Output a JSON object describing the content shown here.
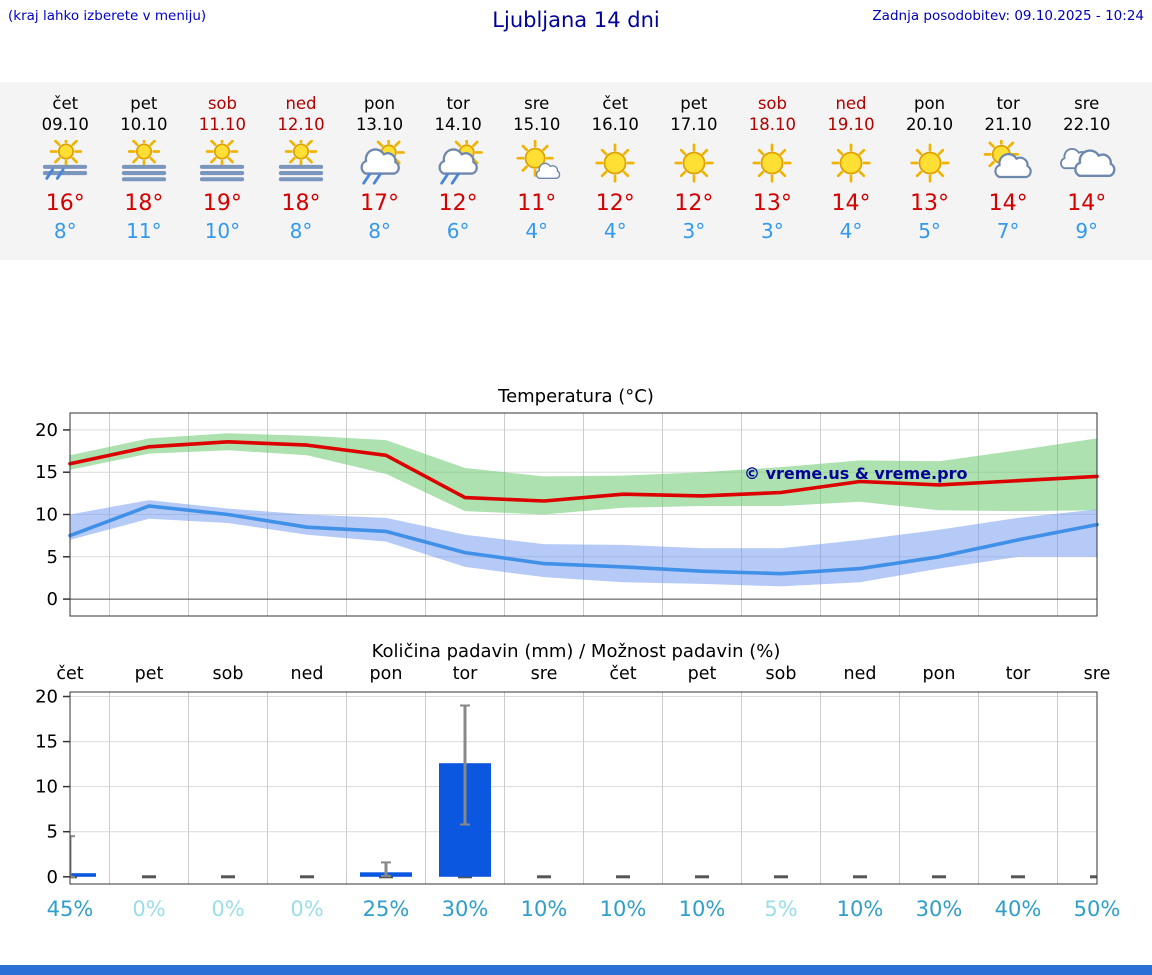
{
  "header": {
    "hint": "(kraj lahko izberete v meniju)",
    "title": "Ljubljana 14 dni",
    "updated": "Zadnja posodobitev: 09.10.2025 - 10:24"
  },
  "forecast": {
    "high_color": "#d40000",
    "low_color": "#3399ee",
    "weekend_color": "#b30000",
    "days": [
      {
        "name": "čet",
        "date": "09.10",
        "weekend": false,
        "icon": "sun-fog-rain",
        "high": "16°",
        "low": "8°"
      },
      {
        "name": "pet",
        "date": "10.10",
        "weekend": false,
        "icon": "sun-fog",
        "high": "18°",
        "low": "11°"
      },
      {
        "name": "sob",
        "date": "11.10",
        "weekend": true,
        "icon": "sun-fog",
        "high": "19°",
        "low": "10°"
      },
      {
        "name": "ned",
        "date": "12.10",
        "weekend": true,
        "icon": "sun-fog",
        "high": "18°",
        "low": "8°"
      },
      {
        "name": "pon",
        "date": "13.10",
        "weekend": false,
        "icon": "sun-cloud-rain",
        "high": "17°",
        "low": "8°"
      },
      {
        "name": "tor",
        "date": "14.10",
        "weekend": false,
        "icon": "sun-cloud-rain",
        "high": "12°",
        "low": "6°"
      },
      {
        "name": "sre",
        "date": "15.10",
        "weekend": false,
        "icon": "sun-small-cloud",
        "high": "11°",
        "low": "4°"
      },
      {
        "name": "čet",
        "date": "16.10",
        "weekend": false,
        "icon": "sun",
        "high": "12°",
        "low": "4°"
      },
      {
        "name": "pet",
        "date": "17.10",
        "weekend": false,
        "icon": "sun",
        "high": "12°",
        "low": "3°"
      },
      {
        "name": "sob",
        "date": "18.10",
        "weekend": true,
        "icon": "sun",
        "high": "13°",
        "low": "3°"
      },
      {
        "name": "ned",
        "date": "19.10",
        "weekend": true,
        "icon": "sun",
        "high": "14°",
        "low": "4°"
      },
      {
        "name": "pon",
        "date": "20.10",
        "weekend": false,
        "icon": "sun",
        "high": "13°",
        "low": "5°"
      },
      {
        "name": "tor",
        "date": "21.10",
        "weekend": false,
        "icon": "sun-cloud",
        "high": "14°",
        "low": "7°"
      },
      {
        "name": "sre",
        "date": "22.10",
        "weekend": false,
        "icon": "cloudy",
        "high": "14°",
        "low": "9°"
      }
    ]
  },
  "chart_data": [
    {
      "type": "line",
      "title": "Temperatura (°C)",
      "watermark": "© vreme.us & vreme.pro",
      "watermark_color": "#000099",
      "ylim": [
        -2,
        22
      ],
      "yticks": [
        0,
        5,
        10,
        15,
        20
      ],
      "grid": true,
      "legend": "none",
      "categories": [
        "čet",
        "pet",
        "sob",
        "ned",
        "pon",
        "tor",
        "sre",
        "čet",
        "pet",
        "sob",
        "ned",
        "pon",
        "tor",
        "sre"
      ],
      "series": [
        {
          "name": "max-temp",
          "color": "#dd0000",
          "values": [
            16,
            18,
            18.6,
            18.2,
            17,
            12,
            11.6,
            12.4,
            12.2,
            12.6,
            13.9,
            13.5,
            14,
            14.5
          ]
        },
        {
          "name": "min-temp",
          "color": "#4090e8",
          "values": [
            7.5,
            11,
            10,
            8.5,
            8,
            5.5,
            4.2,
            3.8,
            3.3,
            3,
            3.6,
            5,
            7,
            8.8
          ]
        }
      ],
      "bands": [
        {
          "name": "max-temp-range",
          "color": "rgba(105,200,110,0.55)",
          "upper": [
            17,
            19,
            19.6,
            19.3,
            18.8,
            15.5,
            14.5,
            14.6,
            15,
            15.6,
            16.4,
            16.3,
            17.6,
            19
          ],
          "lower": [
            15.3,
            17.2,
            17.6,
            17,
            14.8,
            10.4,
            10,
            10.8,
            11,
            11,
            11.5,
            10.5,
            10.4,
            10.5
          ]
        },
        {
          "name": "min-temp-range",
          "color": "rgba(110,150,240,0.5)",
          "upper": [
            10,
            11.7,
            10.7,
            10,
            9.6,
            7.6,
            6.5,
            6.4,
            6,
            6,
            7,
            8.2,
            9.6,
            10.6
          ],
          "lower": [
            7,
            9.5,
            9,
            7.6,
            6.8,
            3.8,
            2.6,
            2,
            1.8,
            1.5,
            2,
            3.6,
            5,
            5
          ]
        }
      ]
    },
    {
      "type": "bar",
      "title": "Količina padavin (mm) / Možnost padavin (%)",
      "ylim": [
        -0.8,
        20.5
      ],
      "yticks": [
        0,
        5,
        10,
        15,
        20
      ],
      "categories": [
        "čet",
        "pet",
        "sob",
        "ned",
        "pon",
        "tor",
        "sre",
        "čet",
        "pet",
        "sob",
        "ned",
        "pon",
        "tor",
        "sre"
      ],
      "values": [
        0.4,
        0,
        0,
        0,
        0.5,
        12.6,
        0,
        0,
        0,
        0,
        0,
        0,
        0,
        0
      ],
      "whisker_low": [
        0,
        0,
        0,
        0,
        0.1,
        5.8,
        0,
        0,
        0,
        0,
        0,
        0,
        0,
        0
      ],
      "whisker_high": [
        4.5,
        0,
        0,
        0,
        1.6,
        19,
        0,
        0,
        0,
        0,
        0,
        0,
        0,
        0
      ],
      "bar_color": "#0b57e0",
      "prob_color": "#2f9fc9",
      "prob_dim_color": "#9adee9",
      "probabilities": [
        {
          "value": "45%",
          "dim": false
        },
        {
          "value": "0%",
          "dim": true
        },
        {
          "value": "0%",
          "dim": true
        },
        {
          "value": "0%",
          "dim": true
        },
        {
          "value": "25%",
          "dim": false
        },
        {
          "value": "30%",
          "dim": false
        },
        {
          "value": "10%",
          "dim": false
        },
        {
          "value": "10%",
          "dim": false
        },
        {
          "value": "10%",
          "dim": false
        },
        {
          "value": "5%",
          "dim": true
        },
        {
          "value": "10%",
          "dim": false
        },
        {
          "value": "30%",
          "dim": false
        },
        {
          "value": "40%",
          "dim": false
        },
        {
          "value": "50%",
          "dim": false
        }
      ]
    }
  ],
  "footer": {
    "bar_color": "#2a6fd6"
  }
}
